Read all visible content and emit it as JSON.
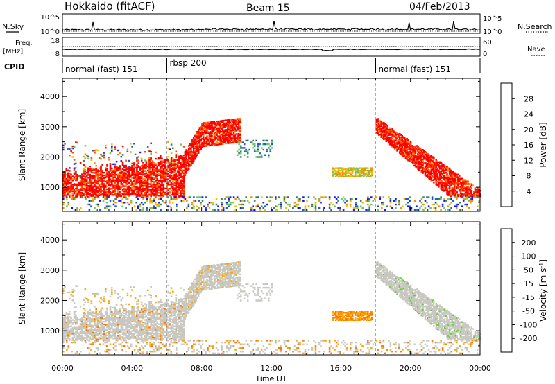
{
  "header": {
    "station": "Hokkaido (fitACF)",
    "beam": "Beam 15",
    "date": "04/Feb/2013"
  },
  "top_strip": {
    "nsky_label": "N.Sky",
    "nsearch_label": "N.Search",
    "freq_label": "Freq.",
    "freq_unit": "[MHz]",
    "nave_label": "Nave",
    "cpid_label": "CPID",
    "noise_left_ticks": [
      "10^5",
      "10^0"
    ],
    "noise_right_ticks": [
      "10^5",
      "10^0"
    ],
    "freq_left_ticks": [
      "18",
      "8"
    ],
    "freq_right_ticks": [
      "60",
      "0"
    ],
    "cpid_segments": [
      {
        "label": "normal (fast) 151",
        "start_hour": 0,
        "end_hour": 6
      },
      {
        "label": "rbsp 200",
        "start_hour": 6,
        "end_hour": 18
      },
      {
        "label": "normal (fast) 151",
        "start_hour": 18,
        "end_hour": 24
      }
    ]
  },
  "chart_data": [
    {
      "type": "heatmap",
      "name": "power-panel",
      "ylabel": "Slant Range [km]",
      "y_ticks": [
        1000,
        2000,
        3000,
        4000
      ],
      "ylim": [
        200,
        4600
      ],
      "xlim_hours": [
        0,
        24
      ],
      "colorbar": {
        "label": "Power [dB]",
        "ticks": [
          4,
          8,
          12,
          16,
          20,
          24,
          28
        ],
        "range": [
          0,
          32
        ],
        "colors": [
          "#1414ff",
          "#1e5ac8",
          "#2e8b57",
          "#64c864",
          "#f0c000",
          "#ff8c00",
          "#ff4500",
          "#ff0000"
        ]
      }
    },
    {
      "type": "heatmap",
      "name": "velocity-panel",
      "ylabel": "Slant Range [km]",
      "y_ticks": [
        1000,
        2000,
        3000,
        4000
      ],
      "ylim": [
        200,
        4600
      ],
      "xlim_hours": [
        0,
        24
      ],
      "colorbar": {
        "label": "Velocity [m s",
        "label_sup": "-1",
        "label_end": "]",
        "ticks": [
          200,
          100,
          50,
          15,
          -15,
          -50,
          -100,
          -200
        ],
        "colors": [
          "#1c1cc8",
          "#2a6ee0",
          "#2e8b57",
          "#66cc33",
          "#c8c8c0",
          "#ffa500",
          "#ff7800",
          "#ff3000",
          "#ff0000"
        ]
      }
    }
  ],
  "x_axis": {
    "label": "Time UT",
    "ticks": [
      "00:00",
      "04:00",
      "08:00",
      "12:00",
      "16:00",
      "20:00",
      "00:00"
    ],
    "tick_hours": [
      0,
      4,
      8,
      12,
      16,
      20,
      24
    ]
  }
}
